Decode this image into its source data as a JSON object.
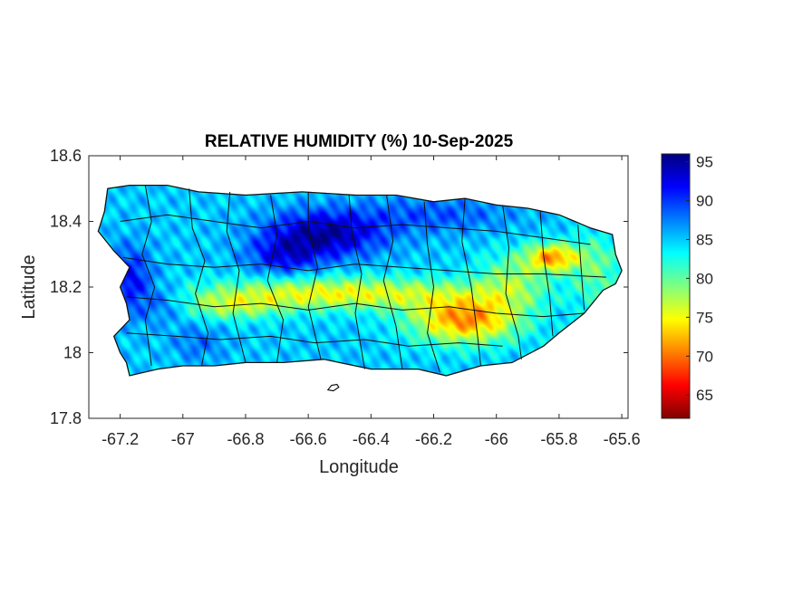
{
  "title": "RELATIVE HUMIDITY (%) 10-Sep-2025",
  "map": {
    "xlabel": "Longitude",
    "ylabel": "Latitude",
    "xlim": [
      -67.3,
      -65.58
    ],
    "ylim": [
      17.8,
      18.6
    ],
    "xticks": [
      {
        "v": -67.2,
        "label": "-67.2"
      },
      {
        "v": -67.0,
        "label": "-67"
      },
      {
        "v": -66.8,
        "label": "-66.8"
      },
      {
        "v": -66.6,
        "label": "-66.6"
      },
      {
        "v": -66.4,
        "label": "-66.4"
      },
      {
        "v": -66.2,
        "label": "-66.2"
      },
      {
        "v": -66.0,
        "label": "-66"
      },
      {
        "v": -65.8,
        "label": "-65.8"
      },
      {
        "v": -65.6,
        "label": "-65.6"
      }
    ],
    "yticks": [
      {
        "v": 17.8,
        "label": "17.8"
      },
      {
        "v": 18.0,
        "label": "18"
      },
      {
        "v": 18.2,
        "label": "18.2"
      },
      {
        "v": 18.4,
        "label": "18.4"
      },
      {
        "v": 18.6,
        "label": "18.6"
      }
    ]
  },
  "colorbar": {
    "range": [
      62,
      96
    ],
    "colormap": "jet",
    "ticks": [
      {
        "v": 65,
        "label": "65"
      },
      {
        "v": 70,
        "label": "70"
      },
      {
        "v": 75,
        "label": "75"
      },
      {
        "v": 80,
        "label": "80"
      },
      {
        "v": 85,
        "label": "85"
      },
      {
        "v": 90,
        "label": "90"
      },
      {
        "v": 95,
        "label": "95"
      }
    ]
  },
  "field": {
    "base": 73,
    "features": [
      {
        "lon": -66.55,
        "lat": 18.36,
        "sx": 0.13,
        "sy": 0.05,
        "a": -10
      },
      {
        "lon": -66.68,
        "lat": 18.29,
        "sx": 0.08,
        "sy": 0.04,
        "a": -6
      },
      {
        "lon": -66.2,
        "lat": 18.42,
        "sx": 0.18,
        "sy": 0.04,
        "a": -4
      },
      {
        "lon": -67.17,
        "lat": 18.22,
        "sx": 0.05,
        "sy": 0.07,
        "a": -7
      },
      {
        "lon": -67.06,
        "lat": 18.15,
        "sx": 0.06,
        "sy": 0.04,
        "a": -4
      },
      {
        "lon": -66.95,
        "lat": 18.03,
        "sx": 0.06,
        "sy": 0.04,
        "a": -3
      },
      {
        "lon": -66.5,
        "lat": 18.18,
        "sx": 0.3,
        "sy": 0.035,
        "a": 10
      },
      {
        "lon": -66.1,
        "lat": 18.1,
        "sx": 0.12,
        "sy": 0.05,
        "a": 14
      },
      {
        "lon": -65.82,
        "lat": 18.29,
        "sx": 0.06,
        "sy": 0.03,
        "a": 13
      },
      {
        "lon": -65.95,
        "lat": 18.22,
        "sx": 0.08,
        "sy": 0.06,
        "a": 6
      },
      {
        "lon": -65.68,
        "lat": 18.25,
        "sx": 0.06,
        "sy": 0.08,
        "a": 5
      },
      {
        "lon": -66.85,
        "lat": 18.14,
        "sx": 0.12,
        "sy": 0.03,
        "a": 6
      }
    ]
  }
}
